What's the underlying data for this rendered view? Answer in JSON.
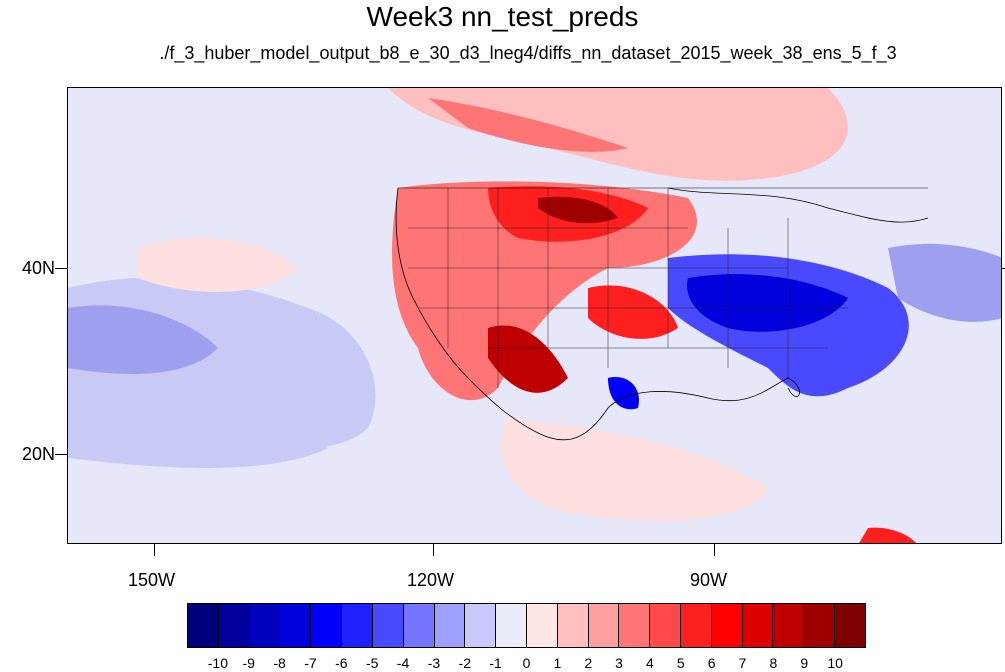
{
  "title": "Week3 nn_test_preds",
  "subtitle": "./f_3_huber_model_output_b8_e_30_d3_lneg4/diffs_nn_dataset_2015_week_38_ens_5_f_3",
  "map": {
    "lat_labels": [
      "40N",
      "20N"
    ],
    "lon_labels": [
      "150W",
      "120W",
      "90W"
    ],
    "field": "temperature difference (shaded)"
  },
  "colorbar": {
    "colors": [
      "#00007f",
      "#00009f",
      "#0000bf",
      "#0000df",
      "#0000ff",
      "#1f1fff",
      "#4949ff",
      "#7474ff",
      "#9f9fff",
      "#c9c9ff",
      "#ebebfa",
      "#ffe6e6",
      "#ffbfbf",
      "#ff9f9f",
      "#ff7474",
      "#ff4949",
      "#ff1f1f",
      "#ff0000",
      "#df0000",
      "#bf0000",
      "#9f0000",
      "#7f0000"
    ],
    "labels": [
      "-10",
      "-9",
      "-8",
      "-7",
      "-6",
      "-5",
      "-4",
      "-3",
      "-2",
      "-1",
      "0",
      "1",
      "2",
      "3",
      "4",
      "5",
      "6",
      "7",
      "8",
      "9",
      "10"
    ]
  }
}
